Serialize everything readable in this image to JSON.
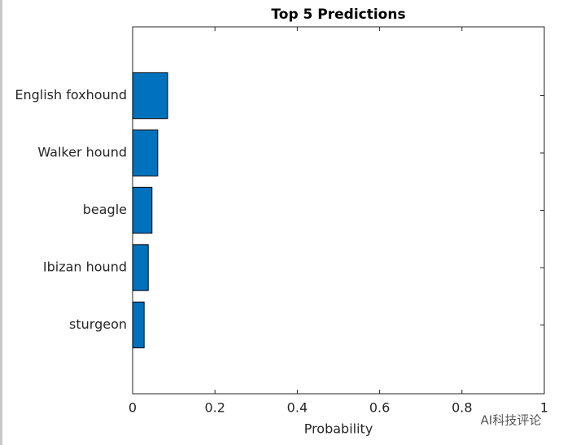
{
  "chart_data": {
    "type": "barh",
    "title": "Top 5 Predictions",
    "xlabel": "Probability",
    "categories": [
      "English foxhound",
      "Walker hound",
      "beagle",
      "Ibizan hound",
      "sturgeon"
    ],
    "values": [
      0.085,
      0.061,
      0.047,
      0.038,
      0.028
    ],
    "color": "#0072bd",
    "xlim": [
      0,
      1
    ],
    "xticks": [
      0,
      0.2,
      0.4,
      0.6,
      0.8,
      1
    ],
    "grid": false
  },
  "watermark": "AI科技评论"
}
